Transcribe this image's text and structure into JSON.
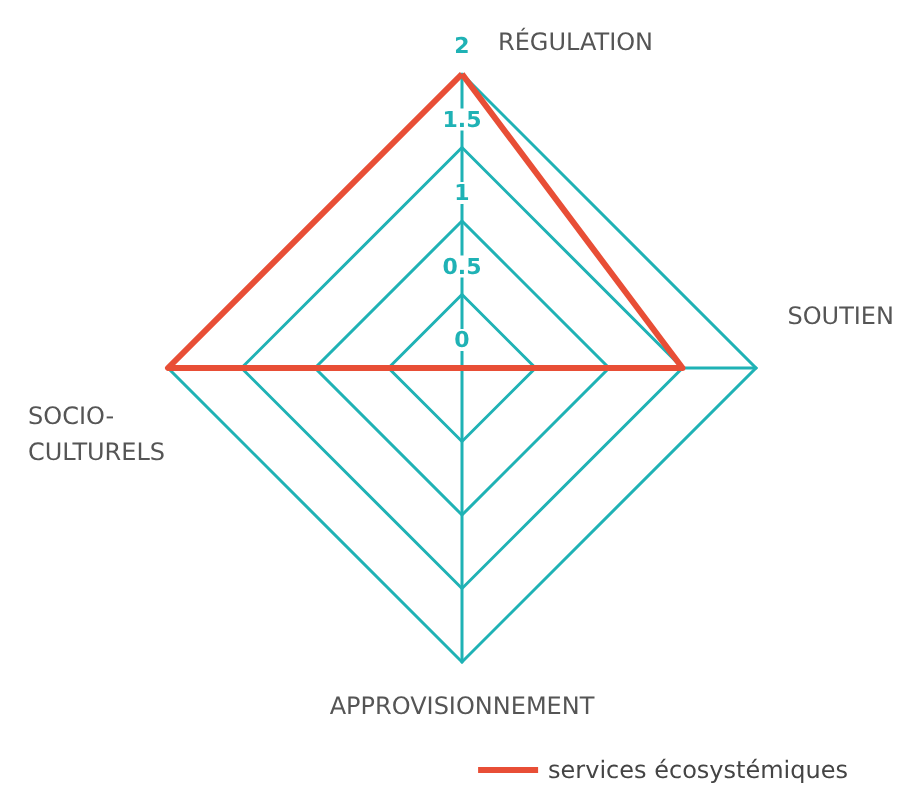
{
  "chart_data": {
    "type": "radar",
    "categories": [
      "RÉGULATION",
      "SOUTIEN",
      "APPROVISIONNEMENT",
      "SOCIO-CULTURELS"
    ],
    "series": [
      {
        "name": "services écosystémiques",
        "color": "#e84e36",
        "values": [
          2,
          1.5,
          0,
          2
        ]
      }
    ],
    "ylim": [
      0,
      2
    ],
    "yticks": [
      0,
      0.5,
      1,
      1.5,
      2
    ],
    "legend": "bottom right",
    "marker": "none",
    "line_style": "solid"
  }
}
